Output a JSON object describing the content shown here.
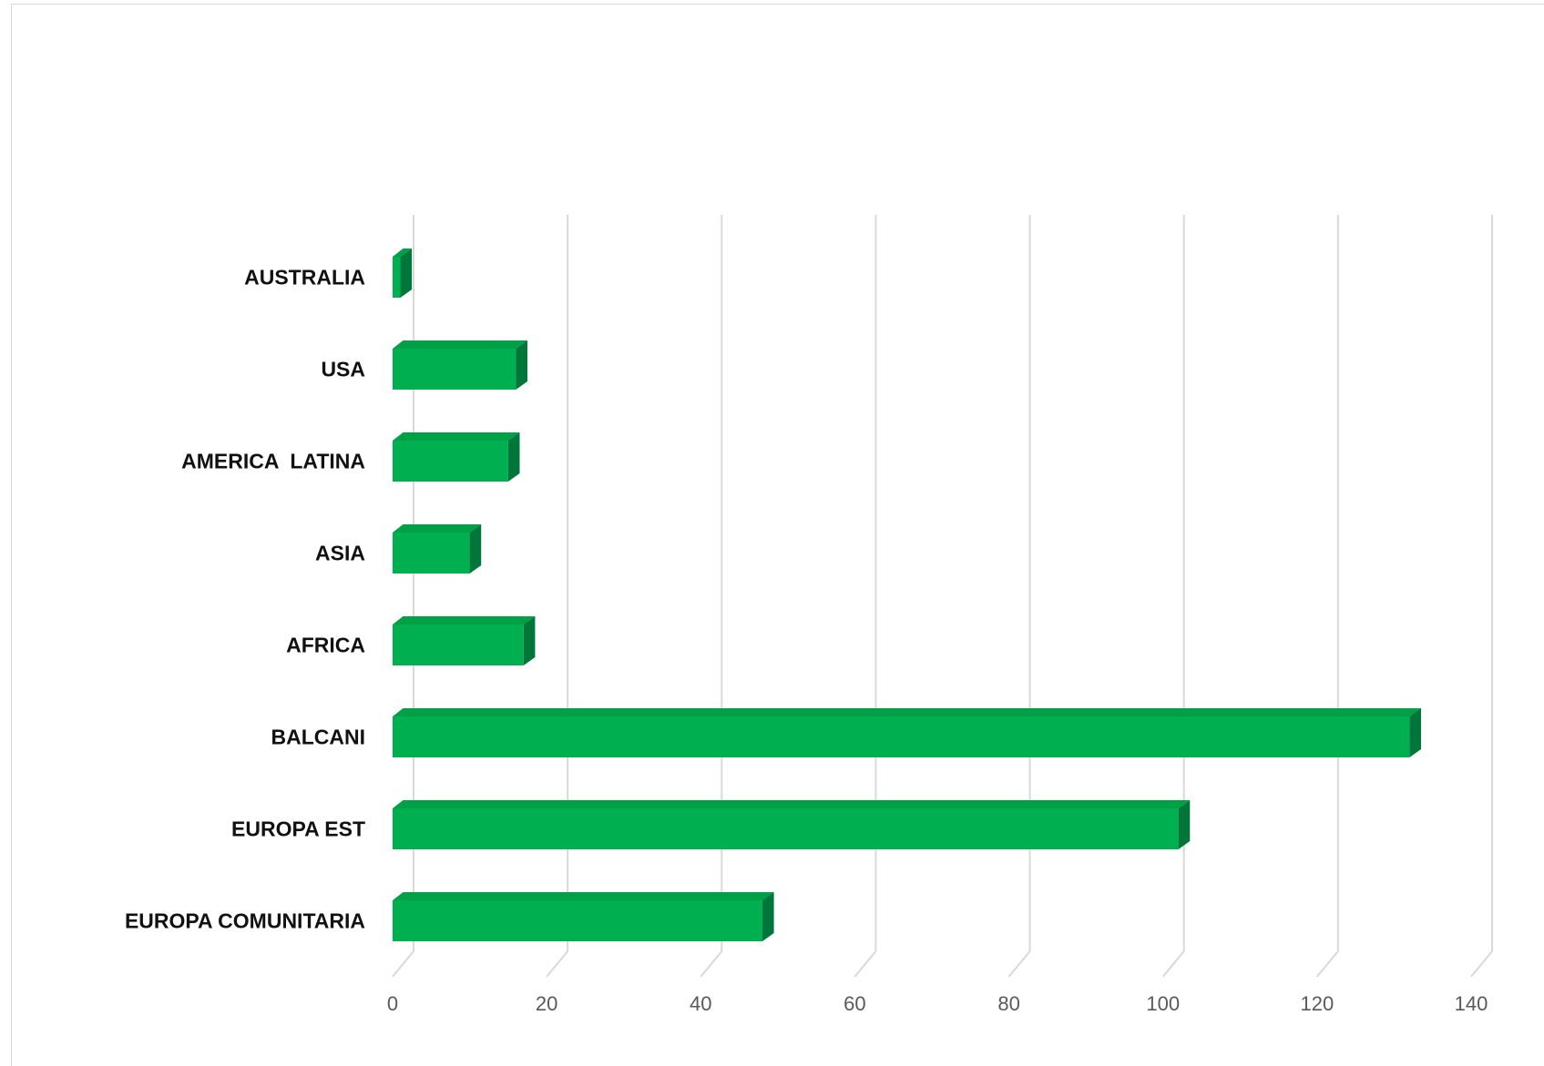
{
  "chart_data": {
    "type": "bar",
    "orientation": "horizontal",
    "style": "3d",
    "categories": [
      "AUSTRALIA",
      "USA",
      "AMERICA  LATINA",
      "ASIA",
      "AFRICA",
      "BALCANI",
      "EUROPA EST",
      "EUROPA COMUNITARIA"
    ],
    "values": [
      1,
      16,
      15,
      10,
      17,
      132,
      102,
      48
    ],
    "xlim": [
      0,
      140
    ],
    "xticks": [
      "0",
      "20",
      "40",
      "60",
      "80",
      "100",
      "120",
      "140"
    ],
    "grid": true,
    "legend": "none",
    "colors": {
      "bar_front": "#00b050",
      "bar_top": "#00a046",
      "bar_side": "#00763a",
      "grid": "#d9d9d9"
    }
  }
}
